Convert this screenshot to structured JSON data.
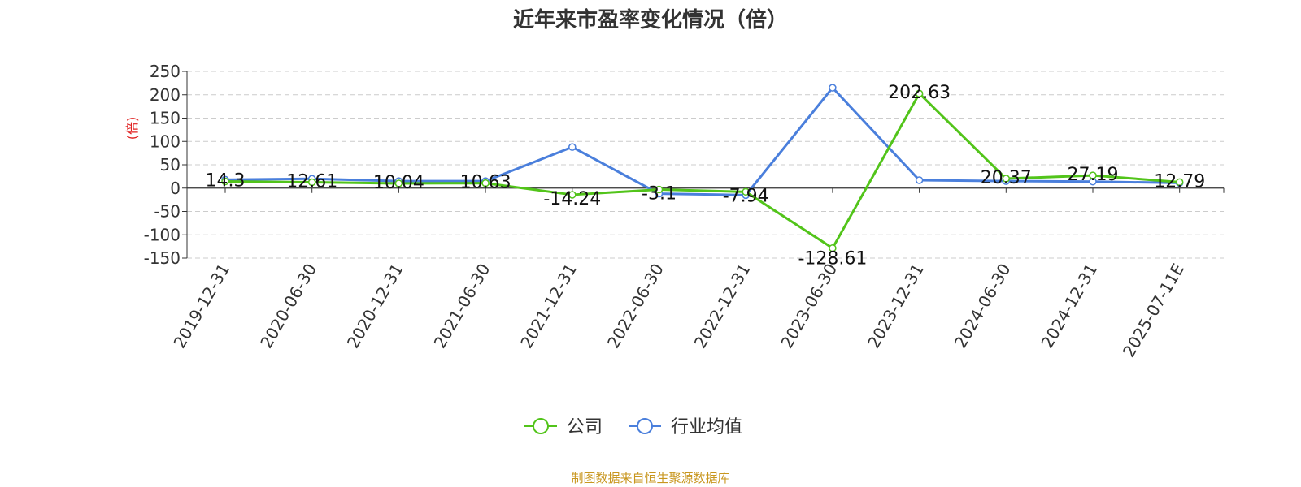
{
  "chart_data": {
    "type": "line",
    "title": "近年来市盈率变化情况（倍）",
    "ylabel": "(倍)",
    "xlabel": "",
    "ylim": [
      -150,
      250
    ],
    "yticks": [
      -150,
      -100,
      -50,
      0,
      50,
      100,
      150,
      200,
      250
    ],
    "categories": [
      "2019-12-31",
      "2020-06-30",
      "2020-12-31",
      "2021-06-30",
      "2021-12-31",
      "2022-06-30",
      "2022-12-31",
      "2023-06-30",
      "2023-12-31",
      "2024-06-30",
      "2024-12-31",
      "2025-07-11E"
    ],
    "series": [
      {
        "name": "公司",
        "color": "#52c41a",
        "values": [
          14.3,
          12.61,
          10.04,
          10.63,
          -14.24,
          -3.1,
          -7.94,
          -128.61,
          202.63,
          20.37,
          27.19,
          12.79
        ],
        "labels": [
          "14.3",
          "12.61",
          "10.04",
          "10.63",
          "-14.24",
          "-3.1",
          "-7.94",
          "-128.61",
          "202.63",
          "20.37",
          "27.19",
          "12.79"
        ]
      },
      {
        "name": "行业均值",
        "color": "#4a7fdc",
        "values": [
          18,
          20,
          15,
          15,
          88,
          -12,
          -15,
          215,
          17,
          15,
          14,
          11
        ]
      }
    ],
    "grid": "horizontal-dashed",
    "legend_position": "bottom-center"
  },
  "colors": {
    "ylabel": "#e02020",
    "source": "#c8961e",
    "grid": "#cccccc",
    "axis": "#333333"
  },
  "source_text": "制图数据来自恒生聚源数据库"
}
